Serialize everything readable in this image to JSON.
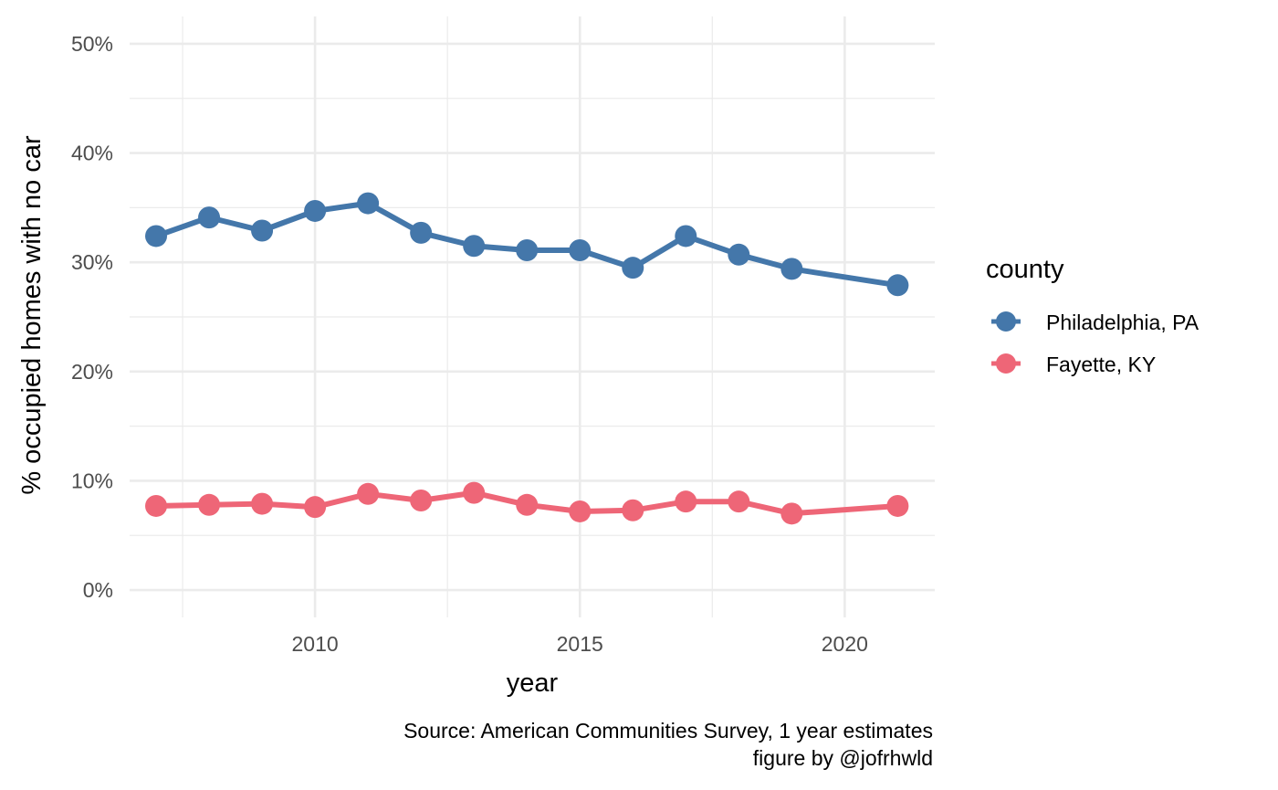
{
  "chart_data": {
    "type": "line",
    "title": "",
    "xlabel": "year",
    "ylabel": "% occupied homes with no car",
    "xlim": [
      2006.5,
      2021.7
    ],
    "ylim": [
      -2.5,
      52.5
    ],
    "x_major_ticks": [
      2010,
      2015,
      2020
    ],
    "x_minor_ticks": [
      2007.5,
      2012.5,
      2017.5
    ],
    "y_major_ticks": [
      0,
      10,
      20,
      30,
      40,
      50
    ],
    "y_minor_ticks": [
      5,
      15,
      25,
      35,
      45
    ],
    "x_tick_labels": [
      "2010",
      "2015",
      "2020"
    ],
    "y_tick_labels": [
      "0%",
      "10%",
      "20%",
      "30%",
      "40%",
      "50%"
    ],
    "grid": true,
    "legend": {
      "title": "county",
      "placement": "right"
    },
    "series": [
      {
        "name": "Philadelphia, PA",
        "color": "#4477AA",
        "x": [
          2007,
          2008,
          2009,
          2010,
          2011,
          2012,
          2013,
          2014,
          2015,
          2016,
          2017,
          2018,
          2019,
          2021
        ],
        "values": [
          32.4,
          34.1,
          32.9,
          34.7,
          35.4,
          32.7,
          31.5,
          31.1,
          31.1,
          29.5,
          32.4,
          30.7,
          29.4,
          27.9
        ]
      },
      {
        "name": "Fayette, KY",
        "color": "#EE6677",
        "x": [
          2007,
          2008,
          2009,
          2010,
          2011,
          2012,
          2013,
          2014,
          2015,
          2016,
          2017,
          2018,
          2019,
          2021
        ],
        "values": [
          7.7,
          7.8,
          7.9,
          7.6,
          8.8,
          8.2,
          8.9,
          7.8,
          7.2,
          7.3,
          8.1,
          8.1,
          7.0,
          7.7
        ]
      }
    ],
    "caption": [
      "Source: American Communities Survey, 1 year estimates",
      "figure by @jofrhwld"
    ]
  }
}
